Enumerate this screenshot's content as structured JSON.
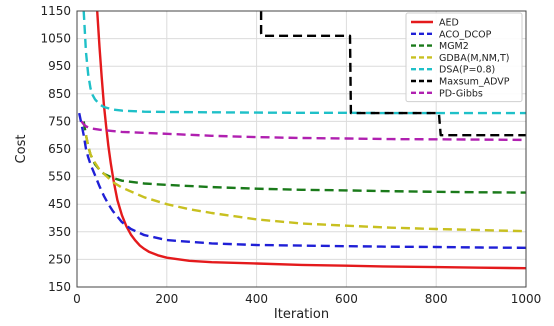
{
  "chart_data": {
    "type": "line",
    "title": "",
    "xlabel": "Iteration",
    "ylabel": "Cost",
    "xlim": [
      0,
      1000
    ],
    "ylim": [
      150,
      1150
    ],
    "xticks": [
      0,
      200,
      400,
      600,
      800,
      1000
    ],
    "yticks": [
      150,
      250,
      350,
      450,
      550,
      650,
      750,
      850,
      950,
      1050,
      1150
    ],
    "grid": true,
    "legend_position": "top-right",
    "series": [
      {
        "name": "AED",
        "color": "#e41a1c",
        "dash": "solid",
        "x": [
          45,
          50,
          55,
          60,
          65,
          70,
          75,
          80,
          85,
          90,
          100,
          110,
          120,
          130,
          140,
          150,
          160,
          180,
          200,
          250,
          300,
          400,
          500,
          600,
          700,
          800,
          900,
          1000
        ],
        "y": [
          1150,
          1020,
          910,
          810,
          730,
          660,
          600,
          550,
          505,
          465,
          410,
          370,
          340,
          318,
          300,
          288,
          278,
          265,
          256,
          245,
          240,
          235,
          230,
          227,
          224,
          222,
          220,
          218
        ]
      },
      {
        "name": "ACO_DCOP",
        "color": "#1f1fd6",
        "dash": "dashed",
        "x": [
          5,
          10,
          15,
          20,
          25,
          30,
          40,
          50,
          60,
          70,
          80,
          90,
          100,
          120,
          150,
          200,
          300,
          400,
          500,
          600,
          700,
          800,
          900,
          1000
        ],
        "y": [
          780,
          740,
          700,
          650,
          620,
          595,
          555,
          515,
          480,
          450,
          425,
          405,
          385,
          360,
          338,
          320,
          308,
          302,
          300,
          298,
          296,
          295,
          293,
          292
        ]
      },
      {
        "name": "MGM2",
        "color": "#1a7a1a",
        "dash": "dashed",
        "x": [
          15,
          20,
          25,
          30,
          40,
          50,
          60,
          80,
          100,
          150,
          200,
          300,
          400,
          500,
          600,
          700,
          800,
          900,
          1000
        ],
        "y": [
          750,
          700,
          660,
          630,
          595,
          575,
          560,
          545,
          535,
          525,
          520,
          512,
          506,
          502,
          500,
          497,
          495,
          493,
          492
        ]
      },
      {
        "name": "GDBA(M,NM,T)",
        "color": "#c8c020",
        "dash": "dashed",
        "x": [
          20,
          25,
          30,
          40,
          50,
          60,
          80,
          100,
          150,
          200,
          250,
          300,
          400,
          500,
          600,
          700,
          800,
          900,
          1000
        ],
        "y": [
          700,
          660,
          630,
          600,
          575,
          560,
          530,
          510,
          475,
          450,
          432,
          418,
          395,
          380,
          372,
          365,
          360,
          356,
          352
        ]
      },
      {
        "name": "DSA(P=0.8)",
        "color": "#1fc0c8",
        "dash": "dashed",
        "x": [
          15,
          20,
          25,
          30,
          35,
          40,
          50,
          60,
          80,
          100,
          150,
          200,
          300,
          400,
          500,
          600,
          700,
          800,
          900,
          1000
        ],
        "y": [
          1150,
          1000,
          920,
          870,
          845,
          830,
          812,
          802,
          793,
          789,
          785,
          784,
          783,
          782,
          781,
          781,
          780,
          780,
          780,
          780
        ]
      },
      {
        "name": "Maxsum_ADVP",
        "color": "#000000",
        "dash": "dashed",
        "x": [
          410,
          410,
          412,
          600,
          608,
          610,
          800,
          806,
          810,
          1000
        ],
        "y": [
          1150,
          1070,
          1060,
          1060,
          1060,
          780,
          780,
          780,
          700,
          700
        ]
      },
      {
        "name": "PD-Gibbs",
        "color": "#b020b0",
        "dash": "dashed",
        "x": [
          10,
          15,
          20,
          30,
          50,
          80,
          100,
          200,
          300,
          400,
          500,
          600,
          700,
          800,
          900,
          1000
        ],
        "y": [
          750,
          740,
          732,
          725,
          720,
          715,
          712,
          705,
          698,
          693,
          690,
          688,
          686,
          685,
          684,
          683
        ]
      }
    ]
  }
}
